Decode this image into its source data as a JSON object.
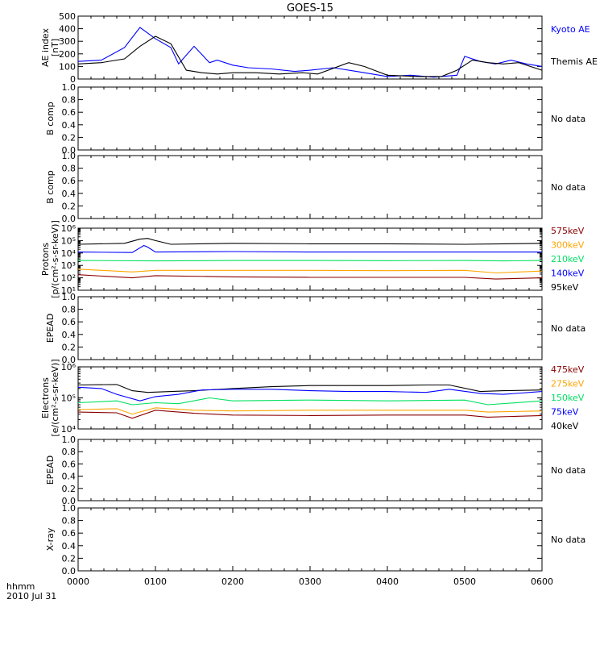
{
  "title": "GOES-15",
  "date_label": "2010 Jul 31",
  "time_label": "hhmm",
  "x_ticks": [
    "0000",
    "0100",
    "0200",
    "0300",
    "0400",
    "0500",
    "0600"
  ],
  "colors": {
    "black": "#000000",
    "blue": "#0000ff",
    "green": "#00e060",
    "orange": "#ffa500",
    "darkred": "#8b0000"
  },
  "chart_data": [
    {
      "type": "line",
      "ylabel": [
        "AE index",
        "[nT]"
      ],
      "ylim": [
        0,
        500
      ],
      "yticks": [
        "0",
        "100",
        "200",
        "300",
        "400",
        "500"
      ],
      "x_unit": "hours UT",
      "series": [
        {
          "name": "Kyoto AE",
          "color": "#0000ff",
          "x": [
            0,
            0.3,
            0.6,
            0.8,
            1.0,
            1.2,
            1.3,
            1.5,
            1.7,
            1.8,
            2.0,
            2.2,
            2.5,
            2.8,
            3.0,
            3.3,
            3.6,
            4.0,
            4.3,
            4.6,
            4.9,
            5.0,
            5.2,
            5.4,
            5.6,
            5.8,
            6.0
          ],
          "y": [
            140,
            150,
            250,
            410,
            320,
            250,
            120,
            260,
            130,
            150,
            110,
            90,
            80,
            60,
            70,
            90,
            60,
            20,
            30,
            15,
            30,
            180,
            140,
            120,
            150,
            120,
            100
          ]
        },
        {
          "name": "Themis AE",
          "color": "#000000",
          "x": [
            0,
            0.3,
            0.6,
            0.8,
            1.0,
            1.2,
            1.4,
            1.6,
            1.8,
            2.0,
            2.3,
            2.6,
            2.9,
            3.1,
            3.5,
            3.7,
            4.0,
            4.4,
            4.7,
            4.9,
            5.1,
            5.3,
            5.5,
            5.7,
            6.0
          ],
          "y": [
            120,
            130,
            160,
            260,
            340,
            280,
            70,
            50,
            40,
            50,
            50,
            40,
            50,
            40,
            130,
            100,
            30,
            20,
            20,
            70,
            150,
            130,
            120,
            130,
            70
          ]
        }
      ],
      "labels": [
        {
          "text": "Kyoto AE",
          "color": "#0000ff",
          "slot": 0
        },
        {
          "text": "Themis AE",
          "color": "#000000",
          "slot": 1
        }
      ]
    },
    {
      "type": "line",
      "ylabel": [
        "B comp"
      ],
      "ylim": [
        0,
        1
      ],
      "yticks": [
        "0.0",
        "0.2",
        "0.4",
        "0.6",
        "0.8",
        "1.0"
      ],
      "series": [],
      "nodata": "No data"
    },
    {
      "type": "line",
      "ylabel": [
        "B comp"
      ],
      "ylim": [
        0,
        1
      ],
      "yticks": [
        "0.0",
        "0.2",
        "0.4",
        "0.6",
        "0.8",
        "1.0"
      ],
      "series": [],
      "nodata": "No data"
    },
    {
      "type": "line",
      "scale": "log",
      "ylabel": [
        "Protons",
        "[p/(cm²-s-sr-keV)]"
      ],
      "ylim": [
        10,
        1000000
      ],
      "yticks": [
        "10¹",
        "10²",
        "10³",
        "10⁴",
        "10⁵",
        "10⁶"
      ],
      "series": [
        {
          "name": "95keV",
          "color": "#000000",
          "x": [
            0,
            0.6,
            0.8,
            0.9,
            1.0,
            1.2,
            2.0,
            3.0,
            4.0,
            5.0,
            5.5,
            6.0
          ],
          "y": [
            50000,
            60000,
            130000,
            150000,
            100000,
            50000,
            60000,
            55000,
            55000,
            50000,
            55000,
            60000
          ]
        },
        {
          "name": "140keV",
          "color": "#0000ff",
          "x": [
            0,
            0.7,
            0.85,
            0.9,
            1.0,
            2.0,
            3.0,
            4.0,
            5.0,
            6.0
          ],
          "y": [
            12000,
            11000,
            40000,
            30000,
            12000,
            13000,
            12000,
            12000,
            12000,
            12000
          ]
        },
        {
          "name": "210keV",
          "color": "#00e060",
          "x": [
            0,
            1.0,
            2.0,
            3.0,
            4.0,
            5.0,
            5.5,
            6.0
          ],
          "y": [
            2500,
            2300,
            2500,
            2500,
            2400,
            2500,
            2300,
            2500
          ]
        },
        {
          "name": "300keV",
          "color": "#ffa500",
          "x": [
            0,
            0.7,
            1.0,
            2.0,
            3.0,
            4.0,
            5.0,
            5.4,
            6.0
          ],
          "y": [
            500,
            300,
            400,
            400,
            400,
            380,
            400,
            250,
            350
          ]
        },
        {
          "name": "575keV",
          "color": "#8b0000",
          "x": [
            0,
            0.7,
            1.0,
            2.0,
            3.0,
            4.0,
            5.0,
            5.4,
            6.0
          ],
          "y": [
            180,
            100,
            150,
            120,
            110,
            110,
            110,
            80,
            100
          ]
        }
      ],
      "labels": [
        {
          "text": "575keV",
          "color": "#8b0000",
          "slot": 0
        },
        {
          "text": "300keV",
          "color": "#ffa500",
          "slot": 1
        },
        {
          "text": "210keV",
          "color": "#00e060",
          "slot": 2
        },
        {
          "text": "140keV",
          "color": "#0000ff",
          "slot": 3
        },
        {
          "text": "95keV",
          "color": "#000000",
          "slot": 4
        }
      ]
    },
    {
      "type": "line",
      "ylabel": [
        "EPEAD"
      ],
      "ylim": [
        0,
        1
      ],
      "yticks": [
        "0.0",
        "0.2",
        "0.4",
        "0.6",
        "0.8",
        "1.0"
      ],
      "series": [],
      "nodata": "No data"
    },
    {
      "type": "line",
      "scale": "log",
      "ylabel": [
        "Electrons",
        "[e/(cm²-s-sr-keV)]"
      ],
      "ylim": [
        10000,
        1000000
      ],
      "yticks": [
        "10⁴",
        "10⁵",
        "10⁶"
      ],
      "series": [
        {
          "name": "40keV",
          "color": "#000000",
          "x": [
            0,
            0.5,
            0.7,
            0.9,
            1.2,
            1.5,
            2.0,
            2.5,
            3.0,
            3.5,
            4.0,
            4.5,
            4.8,
            5.2,
            5.5,
            6.0
          ],
          "y": [
            260000,
            270000,
            170000,
            150000,
            160000,
            170000,
            200000,
            230000,
            250000,
            250000,
            250000,
            260000,
            260000,
            160000,
            170000,
            180000
          ]
        },
        {
          "name": "75keV",
          "color": "#0000ff",
          "x": [
            0,
            0.3,
            0.5,
            0.8,
            1.0,
            1.3,
            1.6,
            2.0,
            2.5,
            3.0,
            3.5,
            4.0,
            4.5,
            4.8,
            5.2,
            5.5,
            6.0
          ],
          "y": [
            220000,
            200000,
            130000,
            80000,
            110000,
            130000,
            180000,
            190000,
            190000,
            170000,
            160000,
            160000,
            150000,
            190000,
            140000,
            130000,
            160000
          ]
        },
        {
          "name": "150keV",
          "color": "#00e060",
          "x": [
            0,
            0.5,
            0.7,
            1.0,
            1.3,
            1.7,
            2.0,
            3.0,
            4.0,
            5.0,
            5.3,
            6.0
          ],
          "y": [
            70000,
            80000,
            60000,
            70000,
            65000,
            100000,
            80000,
            85000,
            80000,
            85000,
            60000,
            80000
          ]
        },
        {
          "name": "275keV",
          "color": "#ffa500",
          "x": [
            0,
            0.5,
            0.7,
            1.0,
            1.5,
            2.0,
            3.0,
            4.0,
            5.0,
            5.3,
            6.0
          ],
          "y": [
            42000,
            45000,
            30000,
            48000,
            40000,
            38000,
            40000,
            40000,
            40000,
            35000,
            38000
          ]
        },
        {
          "name": "475keV",
          "color": "#8b0000",
          "x": [
            0,
            0.5,
            0.7,
            1.0,
            1.5,
            2.0,
            3.0,
            4.0,
            5.0,
            5.3,
            6.0
          ],
          "y": [
            35000,
            33000,
            22000,
            40000,
            32000,
            28000,
            27000,
            28000,
            28000,
            24000,
            27000
          ]
        }
      ],
      "labels": [
        {
          "text": "475keV",
          "color": "#8b0000",
          "slot": 0
        },
        {
          "text": "275keV",
          "color": "#ffa500",
          "slot": 1
        },
        {
          "text": "150keV",
          "color": "#00e060",
          "slot": 2
        },
        {
          "text": "75keV",
          "color": "#0000ff",
          "slot": 3
        },
        {
          "text": "40keV",
          "color": "#000000",
          "slot": 4
        }
      ]
    },
    {
      "type": "line",
      "ylabel": [
        "EPEAD"
      ],
      "ylim": [
        0,
        1
      ],
      "yticks": [
        "0.0",
        "0.2",
        "0.4",
        "0.6",
        "0.8",
        "1.0"
      ],
      "series": [],
      "nodata": "No data"
    },
    {
      "type": "line",
      "ylabel": [
        "X-ray"
      ],
      "ylim": [
        0,
        1
      ],
      "yticks": [
        "0.0",
        "0.2",
        "0.4",
        "0.6",
        "0.8",
        "1.0"
      ],
      "series": [],
      "nodata": "No data"
    }
  ]
}
